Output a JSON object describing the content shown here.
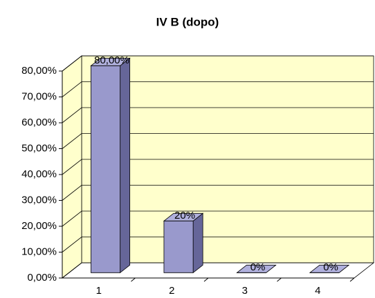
{
  "chart_data": {
    "type": "bar3d",
    "title": "IV B (dopo)",
    "categories": [
      "1",
      "2",
      "3",
      "4"
    ],
    "values": [
      80,
      20,
      0,
      0
    ],
    "value_labels": [
      "80,00%",
      "20%",
      "0%",
      "0%"
    ],
    "color": "#9999cc",
    "ylim": [
      0,
      80
    ],
    "yticks": [
      {
        "value": 0,
        "label": "0,00%"
      },
      {
        "value": 10,
        "label": "10,00%"
      },
      {
        "value": 20,
        "label": "20,00%"
      },
      {
        "value": 30,
        "label": "30,00%"
      },
      {
        "value": 40,
        "label": "40,00%"
      },
      {
        "value": 50,
        "label": "50,00%"
      },
      {
        "value": 60,
        "label": "60,00%"
      },
      {
        "value": 70,
        "label": "70,00%"
      },
      {
        "value": 80,
        "label": "80,00%"
      }
    ],
    "grid": true,
    "wall_color": "#ffffcc"
  }
}
